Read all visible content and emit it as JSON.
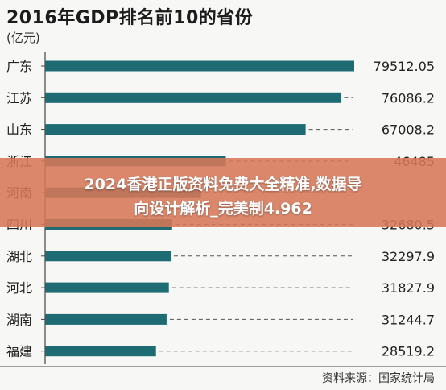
{
  "chart_data": {
    "type": "bar",
    "orientation": "horizontal",
    "title": "2016年GDP排名前10的省份",
    "unit": "(亿元)",
    "categories": [
      "广东",
      "江苏",
      "山东",
      "浙江",
      "河南",
      "四川",
      "湖北",
      "河北",
      "湖南",
      "福建"
    ],
    "values": [
      79512.05,
      76086.2,
      67008.2,
      46485,
      40160.01,
      32680.5,
      32297.9,
      31827.9,
      31244.7,
      28519.2
    ],
    "value_labels": [
      "79512.05",
      "76086.2",
      "67008.2",
      "46485",
      "",
      "32680.5",
      "32297.9",
      "31827.9",
      "31244.7",
      "28519.2"
    ],
    "xlim": [
      0,
      79512.05
    ],
    "grid": false,
    "legend": "none",
    "source": "资料来源：国家统计局"
  },
  "overlay": {
    "line1": "2024香港正版资料免费大全精准,数据导",
    "line2": "向设计解析_完美制4.962"
  },
  "colors": {
    "bar": "#1f6b73",
    "background": "#f7f7f5",
    "overlay": "#d67858",
    "leader": "#555555"
  }
}
